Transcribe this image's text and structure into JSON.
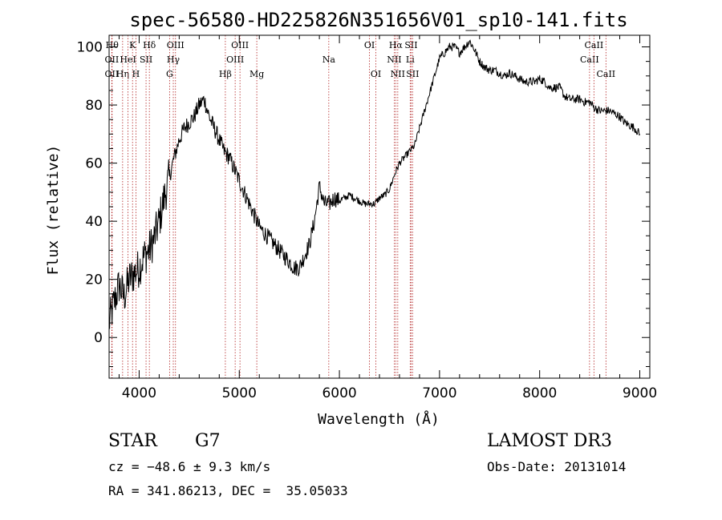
{
  "chart_data": {
    "type": "line",
    "title": "spec-56580-HD225826N351656V01_sp10-141.fits",
    "xlabel": "Wavelength (Å)",
    "ylabel": "Flux (relative)",
    "xlim": [
      3700,
      9100
    ],
    "ylim": [
      -14,
      104
    ],
    "xticks": [
      4000,
      5000,
      6000,
      7000,
      8000,
      9000
    ],
    "yticks": [
      0,
      20,
      40,
      60,
      80,
      100
    ],
    "grid": false,
    "line_color": "#000000",
    "marker_color": "#b22222",
    "series": [
      {
        "x": [
          3700,
          3750,
          3800,
          3850,
          3900,
          3950,
          4000,
          4050,
          4100,
          4150,
          4200,
          4250,
          4300,
          4350,
          4400,
          4450,
          4500,
          4550,
          4600,
          4650,
          4700,
          4750,
          4800,
          4850,
          4900,
          4950,
          5000,
          5050,
          5100,
          5150,
          5200,
          5250,
          5300,
          5350,
          5400,
          5450,
          5500,
          5550,
          5600,
          5650,
          5700,
          5750,
          5800,
          5850,
          5900,
          5950,
          6000,
          6050,
          6100,
          6150,
          6200,
          6250,
          6300,
          6350,
          6400,
          6450,
          6500,
          6550,
          6600,
          6650,
          6700,
          6750,
          6800,
          6850,
          6900,
          6950,
          7000,
          7050,
          7100,
          7150,
          7200,
          7250,
          7300,
          7350,
          7400,
          7450,
          7500,
          7550,
          7600,
          7650,
          7700,
          7750,
          7800,
          7850,
          7900,
          7950,
          8000,
          8050,
          8100,
          8150,
          8200,
          8250,
          8300,
          8350,
          8400,
          8450,
          8500,
          8550,
          8600,
          8650,
          8700,
          8750,
          8800,
          8850,
          8900,
          8950,
          9000
        ],
        "values": [
          5,
          12,
          18,
          14,
          20,
          22,
          24,
          28,
          30,
          34,
          40,
          48,
          55,
          62,
          68,
          72,
          74,
          76,
          80,
          82,
          76,
          72,
          68,
          64,
          62,
          58,
          54,
          50,
          46,
          42,
          38,
          36,
          34,
          32,
          30,
          28,
          26,
          24,
          24,
          28,
          32,
          40,
          52,
          46,
          46,
          48,
          47,
          48,
          49,
          48,
          47,
          46,
          46,
          46,
          48,
          49,
          51,
          56,
          60,
          62,
          64,
          66,
          72,
          78,
          84,
          90,
          96,
          98,
          100,
          100,
          98,
          100,
          102,
          99,
          95,
          93,
          92,
          92,
          91,
          90,
          91,
          90,
          89,
          88,
          88,
          88,
          89,
          88,
          86,
          86,
          86,
          83,
          82,
          82,
          82,
          81,
          81,
          79,
          78,
          78,
          78,
          77,
          76,
          74,
          73,
          72,
          70
        ]
      }
    ],
    "markers": [
      {
        "x": 3730,
        "label": "Hθ",
        "row": 0
      },
      {
        "x": 3727,
        "label": "OII",
        "row": 1
      },
      {
        "x": 3727,
        "label": "OII",
        "row": 2
      },
      {
        "x": 3835,
        "label": "Hη",
        "row": 2
      },
      {
        "x": 3889,
        "label": "HeI",
        "row": 1
      },
      {
        "x": 3934,
        "label": "K",
        "row": 0
      },
      {
        "x": 3968,
        "label": "H",
        "row": 2
      },
      {
        "x": 4069,
        "label": "SII",
        "row": 1
      },
      {
        "x": 4102,
        "label": "Hδ",
        "row": 0
      },
      {
        "x": 4304,
        "label": "G",
        "row": 2
      },
      {
        "x": 4341,
        "label": "Hγ",
        "row": 1
      },
      {
        "x": 4363,
        "label": "OIII",
        "row": 0
      },
      {
        "x": 4861,
        "label": "Hβ",
        "row": 2
      },
      {
        "x": 4959,
        "label": "OIII",
        "row": 1
      },
      {
        "x": 5007,
        "label": "OIII",
        "row": 0
      },
      {
        "x": 5175,
        "label": "Mg",
        "row": 2
      },
      {
        "x": 5894,
        "label": "Na",
        "row": 1
      },
      {
        "x": 6300,
        "label": "OI",
        "row": 0
      },
      {
        "x": 6364,
        "label": "OI",
        "row": 2
      },
      {
        "x": 6548,
        "label": "NII",
        "row": 1
      },
      {
        "x": 6563,
        "label": "Hα",
        "row": 0
      },
      {
        "x": 6583,
        "label": "NII",
        "row": 2
      },
      {
        "x": 6707,
        "label": "Li",
        "row": 1
      },
      {
        "x": 6716,
        "label": "SII",
        "row": 0
      },
      {
        "x": 6731,
        "label": "SII",
        "row": 2
      },
      {
        "x": 8498,
        "label": "CaII",
        "row": 1
      },
      {
        "x": 8542,
        "label": "CaII",
        "row": 0
      },
      {
        "x": 8662,
        "label": "CaII",
        "row": 2
      }
    ]
  },
  "info": {
    "class_label": "STAR",
    "subclass": "G7",
    "cz": "cz = −48.6 ± 9.3 km/s",
    "coords": "RA = 341.86213, DEC =  35.05033",
    "survey": "LAMOST DR3",
    "obs_date": "Obs-Date: 20131014"
  }
}
